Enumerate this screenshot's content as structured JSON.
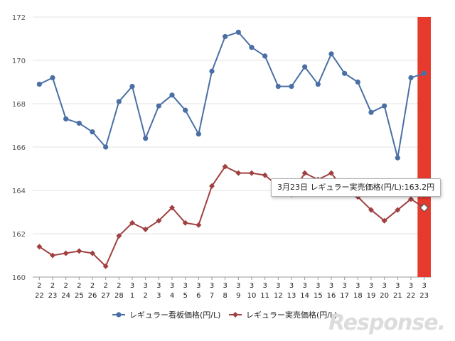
{
  "chart_data": {
    "type": "line",
    "categories": [
      [
        "2",
        "22"
      ],
      [
        "2",
        "23"
      ],
      [
        "2",
        "24"
      ],
      [
        "2",
        "25"
      ],
      [
        "2",
        "26"
      ],
      [
        "2",
        "27"
      ],
      [
        "2",
        "28"
      ],
      [
        "3",
        "1"
      ],
      [
        "3",
        "2"
      ],
      [
        "3",
        "3"
      ],
      [
        "3",
        "4"
      ],
      [
        "3",
        "5"
      ],
      [
        "3",
        "6"
      ],
      [
        "3",
        "7"
      ],
      [
        "3",
        "8"
      ],
      [
        "3",
        "9"
      ],
      [
        "3",
        "10"
      ],
      [
        "3",
        "11"
      ],
      [
        "3",
        "12"
      ],
      [
        "3",
        "13"
      ],
      [
        "3",
        "14"
      ],
      [
        "3",
        "15"
      ],
      [
        "3",
        "16"
      ],
      [
        "3",
        "17"
      ],
      [
        "3",
        "18"
      ],
      [
        "3",
        "19"
      ],
      [
        "3",
        "20"
      ],
      [
        "3",
        "21"
      ],
      [
        "3",
        "22"
      ],
      [
        "3",
        "23"
      ]
    ],
    "series": [
      {
        "name": "レギュラー看板価格(円/L)",
        "color": "#4a6fa5",
        "marker": "circle",
        "values": [
          168.9,
          169.2,
          167.3,
          167.1,
          166.7,
          166.0,
          168.1,
          168.8,
          166.4,
          167.9,
          168.4,
          167.7,
          166.6,
          169.5,
          171.1,
          171.3,
          170.6,
          170.2,
          168.8,
          168.8,
          169.7,
          168.9,
          170.3,
          169.4,
          169.0,
          167.6,
          167.9,
          165.5,
          169.2,
          169.4
        ]
      },
      {
        "name": "レギュラー実売価格(円/L)",
        "color": "#a04040",
        "marker": "diamond",
        "values": [
          161.4,
          161.0,
          161.1,
          161.2,
          161.1,
          160.5,
          161.9,
          162.5,
          162.2,
          162.6,
          163.2,
          162.5,
          162.4,
          164.2,
          165.1,
          164.8,
          164.8,
          164.7,
          164.2,
          163.8,
          164.8,
          164.5,
          164.8,
          164.0,
          163.7,
          163.1,
          162.6,
          163.1,
          163.6,
          163.2
        ]
      }
    ],
    "ylim": [
      160,
      172
    ],
    "yticks": [
      160,
      162,
      164,
      166,
      168,
      170,
      172
    ],
    "grid": true,
    "legend": "bottom",
    "highlight_index": 29,
    "highlight_color": "#e63a2e",
    "tooltip": "3月23日 レギュラー実売価格(円/L):163.2円"
  },
  "branding": {
    "logo": "Response."
  }
}
